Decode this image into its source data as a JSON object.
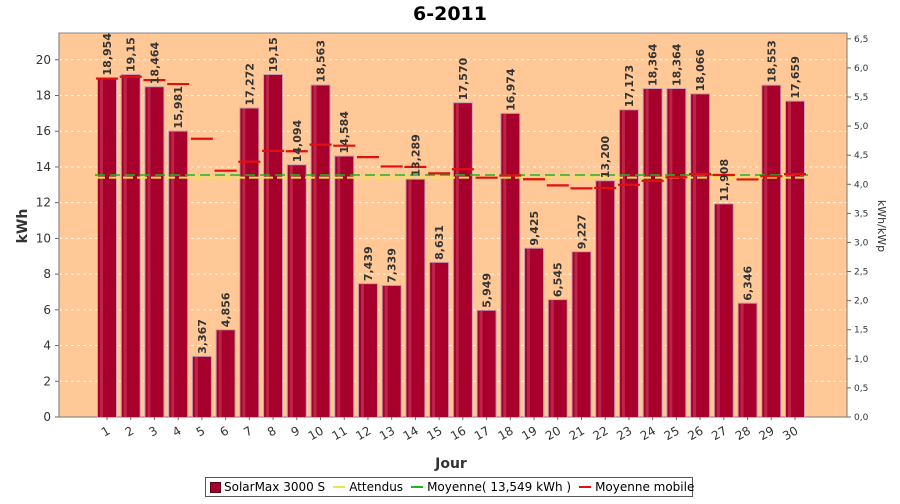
{
  "chart_data": {
    "type": "bar",
    "title": "6-2011",
    "xlabel": "Jour",
    "ylabel": "kWh",
    "y2label": "kWh/kWp",
    "ylim": [
      0,
      21.5
    ],
    "y2lim": [
      0,
      6.6
    ],
    "yticks": [
      "0",
      "2",
      "4",
      "6",
      "8",
      "10",
      "12",
      "14",
      "16",
      "18",
      "20"
    ],
    "y2ticks": [
      "0,0",
      "0,5",
      "1,0",
      "1,5",
      "2,0",
      "2,5",
      "3,0",
      "3,5",
      "4,0",
      "4,5",
      "5,0",
      "5,5",
      "6,0",
      "6,5"
    ],
    "categories": [
      "1",
      "2",
      "3",
      "4",
      "5",
      "6",
      "7",
      "8",
      "9",
      "10",
      "11",
      "12",
      "13",
      "14",
      "15",
      "16",
      "17",
      "18",
      "19",
      "20",
      "21",
      "22",
      "23",
      "24",
      "25",
      "26",
      "27",
      "28",
      "29",
      "30"
    ],
    "series": [
      {
        "name": "SolarMax 3000 S",
        "type": "bar",
        "color": "#a8002c",
        "values": [
          18.954,
          19.15,
          18.464,
          15.981,
          3.367,
          4.856,
          17.272,
          19.15,
          14.094,
          18.563,
          14.584,
          7.439,
          7.339,
          13.289,
          8.631,
          17.57,
          5.949,
          16.974,
          9.425,
          6.545,
          9.227,
          13.2,
          17.173,
          18.364,
          18.364,
          18.066,
          11.908,
          6.346,
          18.553,
          17.659
        ],
        "labels": [
          "18,954",
          "19,15",
          "18,464",
          "15,981",
          "3,367",
          "4,856",
          "17,272",
          "19,15",
          "14,094",
          "18,563",
          "14,584",
          "7,439",
          "7,339",
          "13,289",
          "8,631",
          "17,570",
          "5,949",
          "16,974",
          "9,425",
          "6,545",
          "9,227",
          "13,200",
          "17,173",
          "18,364",
          "18,364",
          "18,066",
          "11,908",
          "6,346",
          "18,553",
          "17,659"
        ]
      },
      {
        "name": "Attendus",
        "type": "line",
        "color": "#e8e84a",
        "values": [
          13.4,
          13.4,
          13.4,
          13.4,
          13.4,
          13.4,
          13.4,
          13.4,
          13.4,
          13.4,
          13.4,
          13.4,
          13.4,
          13.4,
          13.4,
          13.4,
          13.4,
          13.4,
          13.4,
          13.4,
          13.4,
          13.4,
          13.4,
          13.4,
          13.4,
          13.4,
          13.4,
          13.4,
          13.4,
          13.4
        ]
      },
      {
        "name": "Moyenne( 13,549 kWh )",
        "type": "line",
        "color": "#22b422",
        "values": [
          13.549,
          13.549,
          13.549,
          13.549,
          13.549,
          13.549,
          13.549,
          13.549,
          13.549,
          13.549,
          13.549,
          13.549,
          13.549,
          13.549,
          13.549,
          13.549,
          13.549,
          13.549,
          13.549,
          13.549,
          13.549,
          13.549,
          13.549,
          13.549,
          13.549,
          13.549,
          13.549,
          13.549,
          13.549,
          13.549
        ]
      },
      {
        "name": "Moyenne mobile",
        "type": "segments",
        "color": "#e01010",
        "values": [
          18.95,
          19.05,
          18.86,
          18.64,
          15.58,
          13.79,
          14.29,
          14.9,
          14.88,
          15.25,
          15.19,
          14.55,
          14.03,
          14.0,
          13.64,
          13.87,
          13.4,
          13.52,
          13.31,
          12.97,
          12.8,
          12.82,
          13.0,
          13.22,
          13.42,
          13.6,
          13.55,
          13.3,
          13.48,
          13.6
        ]
      }
    ],
    "legend_position": "bottom",
    "grid": true,
    "colors": {
      "plot_background": "#ffc896",
      "grid": "#ffffff",
      "bar_fill": "#a8002c",
      "bar_edge": "#c8a0b4"
    }
  },
  "legend": {
    "items": [
      {
        "label": "SolarMax 3000 S",
        "kind": "bar",
        "color": "#a8002c"
      },
      {
        "label": "Attendus",
        "kind": "line",
        "color": "#e8e84a"
      },
      {
        "label": "Moyenne( 13,549 kWh )",
        "kind": "line",
        "color": "#22b422"
      },
      {
        "label": "Moyenne mobile",
        "kind": "line",
        "color": "#e01010"
      }
    ]
  }
}
